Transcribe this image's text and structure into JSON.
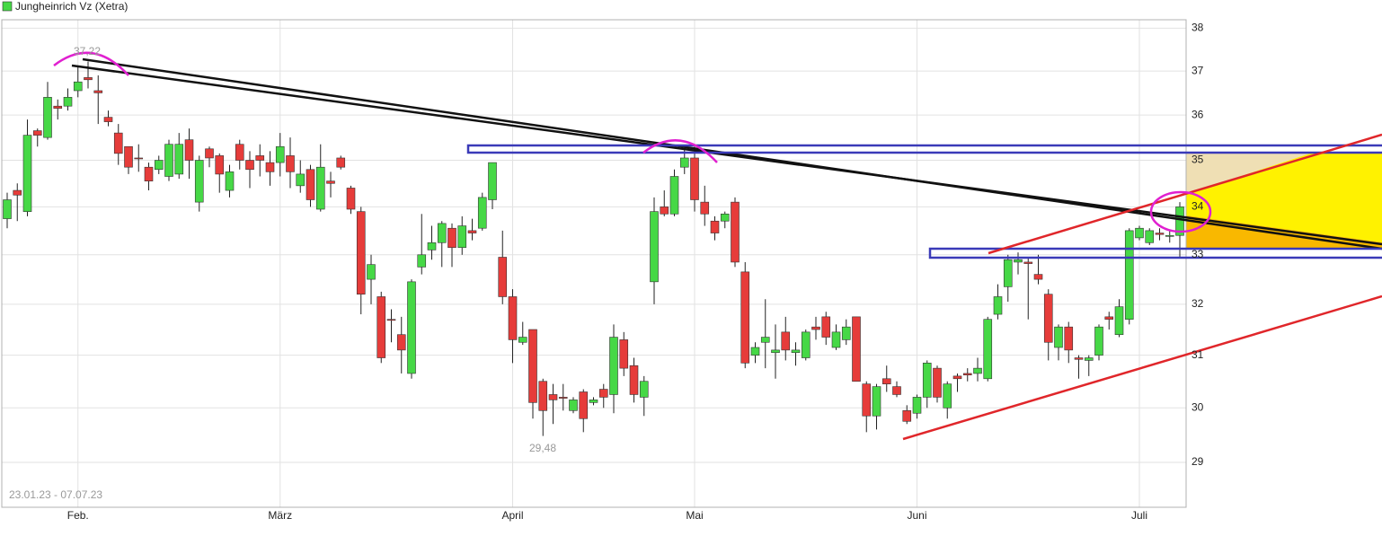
{
  "chart_data": {
    "type": "candlestick",
    "name": "Jungheinrich Vz (Xetra)",
    "up_color": "#46d846",
    "down_color": "#e63c3a",
    "log_scale": true,
    "grid": true,
    "ylim": [
      28.2,
      38.2
    ],
    "yticks": [
      29,
      30,
      31,
      32,
      33,
      34,
      35,
      36,
      37,
      38
    ],
    "high_label": "37,22",
    "low_label": "29,48",
    "period": "23.01.23 - 07.07.23",
    "categories": [
      null,
      null,
      null,
      null,
      null,
      null,
      null,
      "Feb.",
      null,
      null,
      null,
      null,
      null,
      null,
      null,
      null,
      null,
      null,
      null,
      null,
      null,
      null,
      null,
      null,
      null,
      null,
      null,
      "März",
      null,
      null,
      null,
      null,
      null,
      null,
      null,
      null,
      null,
      null,
      null,
      null,
      null,
      null,
      null,
      null,
      null,
      null,
      null,
      null,
      null,
      null,
      "April",
      null,
      null,
      null,
      null,
      null,
      null,
      null,
      null,
      null,
      null,
      null,
      null,
      null,
      null,
      null,
      null,
      null,
      "Mai",
      null,
      null,
      null,
      null,
      null,
      null,
      null,
      null,
      null,
      null,
      null,
      null,
      null,
      null,
      null,
      null,
      null,
      null,
      null,
      null,
      null,
      "Juni",
      null,
      null,
      null,
      null,
      null,
      null,
      null,
      null,
      null,
      null,
      null,
      null,
      null,
      null,
      null,
      null,
      null,
      null,
      null,
      null,
      null,
      "Juli",
      null,
      null,
      null,
      null
    ],
    "open": [
      33.75,
      34.35,
      33.9,
      35.65,
      35.5,
      36.2,
      36.2,
      36.55,
      36.85,
      36.55,
      35.95,
      35.6,
      35.3,
      35.05,
      34.85,
      34.8,
      34.65,
      34.7,
      35.45,
      34.1,
      35.25,
      35.1,
      34.35,
      35.35,
      35.0,
      35.1,
      34.95,
      34.95,
      35.1,
      34.45,
      34.8,
      33.95,
      34.55,
      35.05,
      34.4,
      33.9,
      32.5,
      32.15,
      31.7,
      31.4,
      30.65,
      32.75,
      33.1,
      33.25,
      33.55,
      33.15,
      33.5,
      33.55,
      34.15,
      32.95,
      32.15,
      31.25,
      31.5,
      30.5,
      30.25,
      30.2,
      29.95,
      30.3,
      30.1,
      30.35,
      30.25,
      31.3,
      30.8,
      30.2,
      32.45,
      34.0,
      33.85,
      34.85,
      35.05,
      34.1,
      33.7,
      33.7,
      34.1,
      32.65,
      31.0,
      31.25,
      31.05,
      31.45,
      31.05,
      30.95,
      31.55,
      31.75,
      31.15,
      31.3,
      31.75,
      30.45,
      29.85,
      30.55,
      30.4,
      29.95,
      29.9,
      30.2,
      30.75,
      30.0,
      30.6,
      30.65,
      30.65,
      30.55,
      31.8,
      32.35,
      32.85,
      32.85,
      32.6,
      32.2,
      31.15,
      31.55,
      30.95,
      30.9,
      31.0,
      31.75,
      31.4,
      31.7,
      33.35,
      33.25,
      33.45,
      33.38,
      33.4
    ],
    "high": [
      34.3,
      34.5,
      35.9,
      35.7,
      36.75,
      36.35,
      36.6,
      37.1,
      37.22,
      36.9,
      36.1,
      35.8,
      35.3,
      35.35,
      34.95,
      35.1,
      35.45,
      35.6,
      35.7,
      35.1,
      35.3,
      35.15,
      34.9,
      35.45,
      35.2,
      35.35,
      35.2,
      35.6,
      35.5,
      35.0,
      34.9,
      35.35,
      34.75,
      35.1,
      34.45,
      34.0,
      33.0,
      32.25,
      31.9,
      31.75,
      32.5,
      33.85,
      33.6,
      33.7,
      33.65,
      33.8,
      33.75,
      34.3,
      34.95,
      33.5,
      32.3,
      31.65,
      31.5,
      30.55,
      30.45,
      30.45,
      30.2,
      30.35,
      30.2,
      30.45,
      31.6,
      31.45,
      30.95,
      30.6,
      34.2,
      34.35,
      34.8,
      35.25,
      35.3,
      34.45,
      33.8,
      33.9,
      34.2,
      32.85,
      31.25,
      32.1,
      31.6,
      31.75,
      31.25,
      31.5,
      31.75,
      31.85,
      31.6,
      31.7,
      31.75,
      30.5,
      30.45,
      30.8,
      30.5,
      30.05,
      30.25,
      30.9,
      30.8,
      30.5,
      30.65,
      30.75,
      30.95,
      31.75,
      32.4,
      33.0,
      33.05,
      32.95,
      33.0,
      32.3,
      31.6,
      31.65,
      31.0,
      31.0,
      31.6,
      31.85,
      32.1,
      33.55,
      33.6,
      33.55,
      33.55,
      33.5,
      34.1
    ],
    "low": [
      33.55,
      33.7,
      33.8,
      35.3,
      35.45,
      35.9,
      36.1,
      36.4,
      36.6,
      35.8,
      35.75,
      34.9,
      34.7,
      34.75,
      34.35,
      34.7,
      34.55,
      34.6,
      34.6,
      33.9,
      34.85,
      34.3,
      34.2,
      34.8,
      34.4,
      34.65,
      34.45,
      34.65,
      34.4,
      34.3,
      34.0,
      33.9,
      34.2,
      34.8,
      33.85,
      31.8,
      32.0,
      30.85,
      31.25,
      30.65,
      30.55,
      32.6,
      32.9,
      32.75,
      32.75,
      33.0,
      33.3,
      33.5,
      33.95,
      32.0,
      30.85,
      31.2,
      29.8,
      29.48,
      29.7,
      29.95,
      29.9,
      29.55,
      30.05,
      30.0,
      29.9,
      30.6,
      30.1,
      29.85,
      32.0,
      33.8,
      33.8,
      34.7,
      33.9,
      33.6,
      33.3,
      33.55,
      32.75,
      30.75,
      30.85,
      30.75,
      30.55,
      30.9,
      30.8,
      30.9,
      31.3,
      31.2,
      31.1,
      31.2,
      30.5,
      29.55,
      29.6,
      30.3,
      30.2,
      29.7,
      29.8,
      30.0,
      30.1,
      29.8,
      30.3,
      30.5,
      30.5,
      30.5,
      31.7,
      32.05,
      32.6,
      31.7,
      32.4,
      30.9,
      30.9,
      30.85,
      30.55,
      30.6,
      30.9,
      31.5,
      31.35,
      31.6,
      33.3,
      33.2,
      33.3,
      33.25,
      32.95
    ],
    "close": [
      34.15,
      34.25,
      35.55,
      35.55,
      36.4,
      36.15,
      36.4,
      36.75,
      36.8,
      36.5,
      35.85,
      35.15,
      34.85,
      35.03,
      34.55,
      35.0,
      35.35,
      35.35,
      35.0,
      35.0,
      35.05,
      34.7,
      34.75,
      35.0,
      34.8,
      35.0,
      34.75,
      35.3,
      34.75,
      34.7,
      34.15,
      34.85,
      34.5,
      34.85,
      33.95,
      32.2,
      32.8,
      30.95,
      31.68,
      31.1,
      32.45,
      33.0,
      33.25,
      33.65,
      33.15,
      33.6,
      33.45,
      34.2,
      34.95,
      32.15,
      31.3,
      31.35,
      30.1,
      29.95,
      30.15,
      30.18,
      30.15,
      29.8,
      30.15,
      30.2,
      31.35,
      30.75,
      30.25,
      30.5,
      33.9,
      33.85,
      34.65,
      35.05,
      34.15,
      33.85,
      33.45,
      33.85,
      32.85,
      30.85,
      31.15,
      31.35,
      31.1,
      31.1,
      31.1,
      31.45,
      31.5,
      31.35,
      31.45,
      31.55,
      30.5,
      29.85,
      30.4,
      30.45,
      30.25,
      29.75,
      30.2,
      30.85,
      30.2,
      30.45,
      30.55,
      30.62,
      30.75,
      31.7,
      32.15,
      32.9,
      32.9,
      32.82,
      32.5,
      31.25,
      31.55,
      31.1,
      30.92,
      30.95,
      31.55,
      31.7,
      31.95,
      33.5,
      33.55,
      33.5,
      33.42,
      33.4,
      34.0
    ]
  }
}
